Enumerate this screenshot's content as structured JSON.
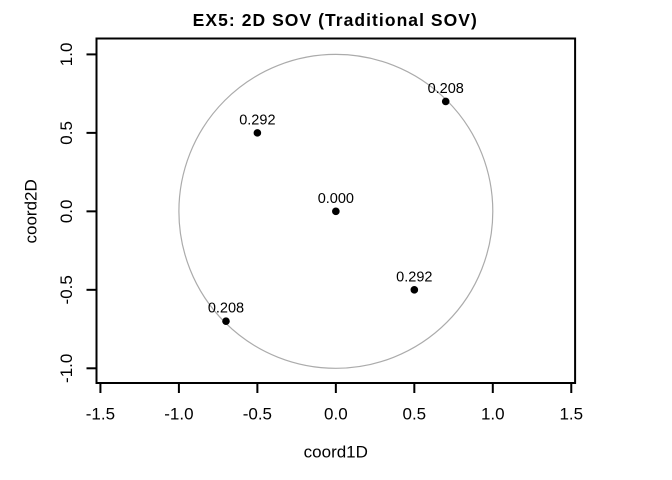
{
  "chart_data": {
    "type": "scatter",
    "title": "EX5: 2D SOV (Traditional SOV)",
    "xlabel": "coord1D",
    "ylabel": "coord2D",
    "xlim": [
      -1.52,
      1.52
    ],
    "ylim": [
      -1.1,
      1.09
    ],
    "grid": false,
    "legend": null,
    "x_ticks": [
      -1.5,
      -1.0,
      -0.5,
      0.0,
      0.5,
      1.0,
      1.5
    ],
    "x_tick_labels": [
      "-1.5",
      "-1.0",
      "-0.5",
      "0.0",
      "0.5",
      "1.0",
      "1.5"
    ],
    "y_ticks": [
      -1.0,
      -0.5,
      0.0,
      0.5,
      1.0
    ],
    "y_tick_labels": [
      "-1.0",
      "-0.5",
      "0.0",
      "0.5",
      "1.0"
    ],
    "unit_circle": {
      "cx": 0,
      "cy": 0,
      "r": 1
    },
    "points": [
      {
        "x": 0.0,
        "y": 0.0,
        "label": "0.000"
      },
      {
        "x": -0.5,
        "y": 0.5,
        "label": "0.292"
      },
      {
        "x": 0.7,
        "y": 0.7,
        "label": "0.208"
      },
      {
        "x": 0.5,
        "y": -0.5,
        "label": "0.292"
      },
      {
        "x": -0.7,
        "y": -0.7,
        "label": "0.208"
      }
    ],
    "marker": "filled-circle",
    "label_position": "above"
  },
  "colors": {
    "background": "#ffffff",
    "axis": "#000000",
    "text": "#000000",
    "circle_outline": "#ababab",
    "marker_fill": "#000000"
  }
}
